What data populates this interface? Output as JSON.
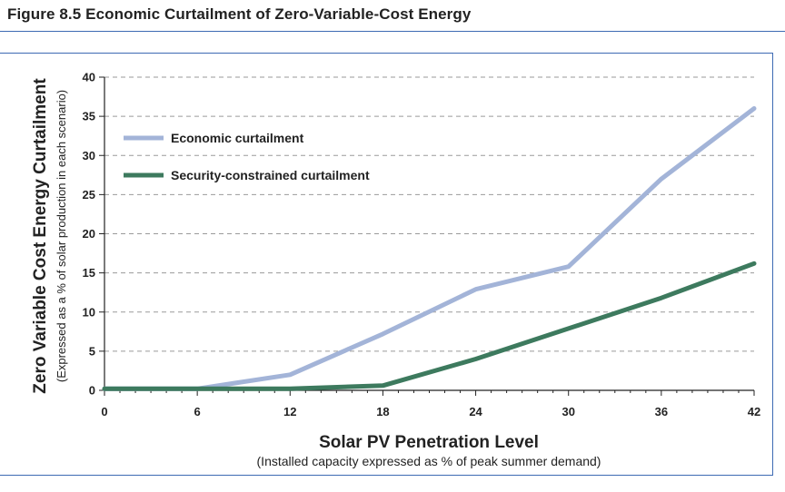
{
  "figure": {
    "title": "Figure 8.5  Economic Curtailment of Zero-Variable-Cost Energy"
  },
  "colors": {
    "economic": "#a3b4d8",
    "security": "#3d7a5e",
    "grid": "#9a9a9a",
    "rule": "#3d6ab3"
  },
  "chart_data": {
    "type": "line",
    "xlabel": "Solar PV Penetration Level",
    "xlabel_sub": "(Installed capacity expressed as % of peak summer demand)",
    "ylabel": "Zero Variable Cost Energy Curtailment",
    "ylabel_sub": "(Expressed as a % of solar production in each scenario)",
    "xlim": [
      0,
      42
    ],
    "ylim": [
      0,
      40
    ],
    "x_ticks": [
      0,
      6,
      12,
      18,
      24,
      30,
      36,
      42
    ],
    "y_ticks": [
      0,
      5,
      10,
      15,
      20,
      25,
      30,
      35,
      40
    ],
    "grid": "horizontal dashed",
    "legend_position": "upper-left",
    "series": [
      {
        "name": "Economic curtailment",
        "x": [
          0,
          6,
          12,
          18,
          24,
          30,
          36,
          42
        ],
        "values": [
          0.2,
          0.2,
          2,
          7.2,
          12.9,
          15.8,
          27,
          36
        ]
      },
      {
        "name": "Security-constrained curtailment",
        "x": [
          0,
          6,
          12,
          18,
          24,
          30,
          36,
          42
        ],
        "values": [
          0.2,
          0.2,
          0.2,
          0.6,
          4,
          7.9,
          11.8,
          16.2
        ]
      }
    ]
  }
}
